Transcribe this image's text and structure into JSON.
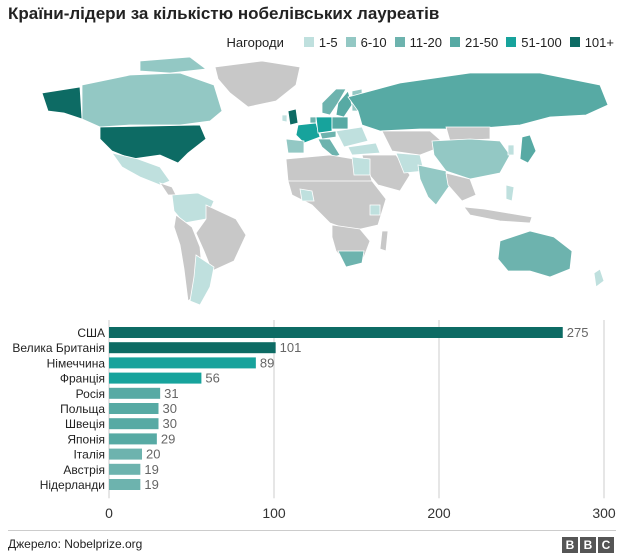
{
  "title": "Країни-лідери за кількістю нобелівських лауреатів",
  "legend": {
    "label": "Нагороди",
    "items": [
      {
        "label": "1-5",
        "color": "#bfe0de"
      },
      {
        "label": "6-10",
        "color": "#93c8c4"
      },
      {
        "label": "11-20",
        "color": "#6db3ae"
      },
      {
        "label": "21-50",
        "color": "#57aaa4"
      },
      {
        "label": "51-100",
        "color": "#17a39c"
      },
      {
        "label": "101+",
        "color": "#0d6b64"
      }
    ]
  },
  "chart_data": {
    "type": "bar",
    "orientation": "horizontal",
    "categories": [
      "США",
      "Велика Британія",
      "Німеччина",
      "Франція",
      "Росія",
      "Польща",
      "Швеція",
      "Японія",
      "Італія",
      "Австрія",
      "Нідерланди"
    ],
    "values": [
      275,
      101,
      89,
      56,
      31,
      30,
      30,
      29,
      20,
      19,
      19
    ],
    "colors": [
      "#0d6b64",
      "#0d6b64",
      "#17a39c",
      "#17a39c",
      "#57aaa4",
      "#57aaa4",
      "#57aaa4",
      "#57aaa4",
      "#6db3ae",
      "#6db3ae",
      "#6db3ae"
    ],
    "xlim": [
      0,
      300
    ],
    "xticks": [
      0,
      100,
      200,
      300
    ],
    "grid": true
  },
  "footer": {
    "source": "Джерело: Nobelprize.org",
    "logo_letters": [
      "B",
      "B",
      "C"
    ]
  }
}
